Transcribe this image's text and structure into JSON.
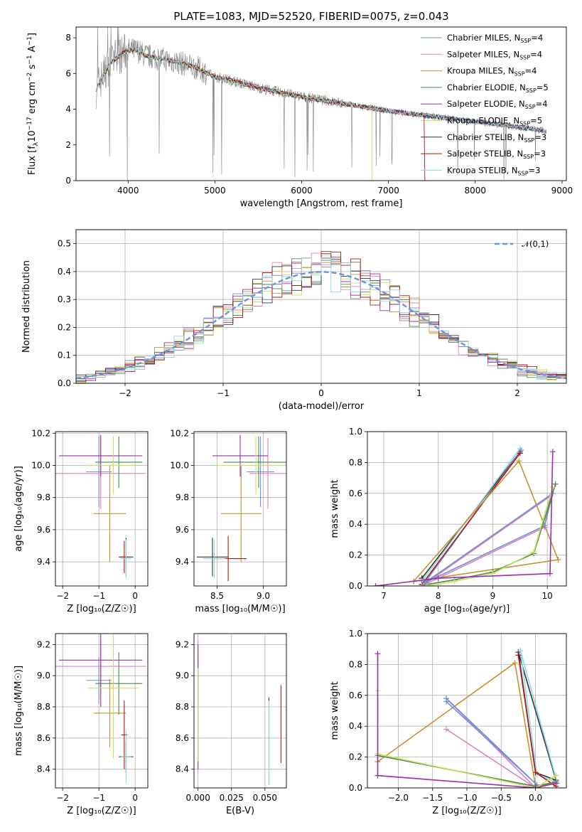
{
  "figure": {
    "title": "PLATE=1083, MJD=52520, FIBERID=0075, z=0.043"
  },
  "series": [
    {
      "name": "Chabrier MILES",
      "nssp": "4",
      "color": "#6f8fd6"
    },
    {
      "name": "Salpeter MILES",
      "nssp": "4",
      "color": "#e07fc0"
    },
    {
      "name": "Kroupa MILES",
      "nssp": "4",
      "color": "#c89030"
    },
    {
      "name": "Chabrier ELODIE",
      "nssp": "5",
      "color": "#4a8a4a"
    },
    {
      "name": "Salpeter ELODIE",
      "nssp": "4",
      "color": "#9a2fa8"
    },
    {
      "name": "Kroupa ELODIE",
      "nssp": "5",
      "color": "#c8e060"
    },
    {
      "name": "Chabrier STELIB",
      "nssp": "3",
      "color": "#333333"
    },
    {
      "name": "Salpeter STELIB",
      "nssp": "3",
      "color": "#b01818"
    },
    {
      "name": "Kroupa STELIB",
      "nssp": "3",
      "color": "#8fd8e0"
    }
  ],
  "chart_data": [
    {
      "id": "spectrum",
      "type": "line",
      "xlabel": "wavelength [Angstrom, rest frame]",
      "ylabel_main": "Flux [f",
      "ylabel_sub": "λ",
      "ylabel_mid": "10",
      "ylabel_sup1": "−17",
      "ylabel_mid2": " erg cm",
      "ylabel_sup2": "−2",
      "ylabel_mid3": " s",
      "ylabel_sup3": "−1",
      "ylabel_end": " A",
      "ylabel_sup4": "−1",
      "ylabel_close": "]",
      "xlim": [
        3400,
        9050
      ],
      "ylim": [
        0,
        8.6
      ],
      "xticks": [
        4000,
        5000,
        6000,
        7000,
        8000,
        9000
      ],
      "yticks": [
        0,
        2,
        4,
        6,
        8
      ],
      "data_color": "#808080",
      "continuum_x": [
        3620,
        3700,
        3800,
        3900,
        4000,
        4100,
        4200,
        4400,
        4600,
        4800,
        5000,
        5200,
        5500,
        6000,
        6500,
        7000,
        7500,
        8000,
        8500,
        8800
      ],
      "continuum_y": [
        5.0,
        5.8,
        6.6,
        7.0,
        7.3,
        7.3,
        7.0,
        6.8,
        6.6,
        6.3,
        5.8,
        5.6,
        5.2,
        4.7,
        4.3,
        3.9,
        3.6,
        3.3,
        3.0,
        2.8
      ],
      "model_end_x": {
        "Kroupa ELODIE": 6810,
        "Salpeter STELIB": 7420,
        "Kroupa STELIB": 8800
      }
    },
    {
      "id": "residuals",
      "type": "histogram",
      "xlabel": "(data-model)/error",
      "ylabel": "Normed distribution",
      "xlim": [
        -2.5,
        2.5
      ],
      "ylim": [
        0,
        0.55
      ],
      "xticks": [
        -2,
        -1,
        0,
        1,
        2
      ],
      "xtick_labels": [
        "−2",
        "−1",
        "0",
        "1",
        "2"
      ],
      "yticks": [
        0.0,
        0.1,
        0.2,
        0.3,
        0.4,
        0.5
      ],
      "ytick_labels": [
        "0.0",
        "0.1",
        "0.2",
        "0.3",
        "0.4",
        "0.5"
      ],
      "bin_width": 0.1,
      "grid": true,
      "reference_label": "𝒩(0,1)",
      "reference_color": "#6d93d8",
      "legend": "top-right"
    },
    {
      "id": "age_vs_Z",
      "type": "errorbar",
      "xlabel": "Z [log₁₀(Z/Z☉)]",
      "ylabel": "age  [log₁₀(age/yr)]",
      "xlim": [
        -2.2,
        0.35
      ],
      "ylim": [
        9.25,
        10.21
      ],
      "xticks": [
        -2,
        -1,
        0
      ],
      "xtick_labels": [
        "−2",
        "−1",
        "0"
      ],
      "yticks": [
        9.4,
        9.6,
        9.8,
        10.0,
        10.2
      ],
      "ytick_labels": [
        "9.4",
        "9.6",
        "9.8",
        "10.0",
        "10.2"
      ],
      "points": [
        {
          "s": 0,
          "x": -1.0,
          "xerr": 0.35,
          "y": 9.96,
          "yerr": 0.22
        },
        {
          "s": 1,
          "x": -0.95,
          "xerr": 1.25,
          "y": 9.95,
          "yerr": 0.22
        },
        {
          "s": 2,
          "x": -0.7,
          "xerr": 0.45,
          "y": 9.7,
          "yerr": 0.3
        },
        {
          "s": 3,
          "x": -0.45,
          "xerr": 0.65,
          "y": 10.02,
          "yerr": 0.16
        },
        {
          "s": 4,
          "x": -0.95,
          "xerr": 1.15,
          "y": 10.06,
          "yerr": 0.13
        },
        {
          "s": 5,
          "x": -0.6,
          "xerr": 0.7,
          "y": 10.0,
          "yerr": 0.18
        },
        {
          "s": 6,
          "x": -0.25,
          "xerr": 0.2,
          "y": 9.43,
          "yerr": 0.12
        },
        {
          "s": 7,
          "x": -0.3,
          "xerr": 0.1,
          "y": 9.43,
          "yerr": 0.1
        },
        {
          "s": 8,
          "x": -0.25,
          "xerr": 0.15,
          "y": 9.42,
          "yerr": 0.12
        }
      ]
    },
    {
      "id": "age_vs_mass",
      "type": "errorbar",
      "xlabel": "mass [log₁₀(M/M☉)]",
      "ylabel": "",
      "xlim": [
        8.25,
        9.25
      ],
      "ylim": [
        9.25,
        10.21
      ],
      "xticks": [
        8.5,
        9.0
      ],
      "xtick_labels": [
        "8.5",
        "9.0"
      ],
      "yticks": [
        9.4,
        9.6,
        9.8,
        10.0,
        10.2
      ],
      "ytick_labels": [
        "9.4",
        "9.6",
        "9.8",
        "10.0",
        "10.2"
      ],
      "points": [
        {
          "s": 0,
          "x": 8.97,
          "xerr": 0.15,
          "y": 9.96,
          "yerr": 0.22
        },
        {
          "s": 1,
          "x": 9.05,
          "xerr": 0.2,
          "y": 9.95,
          "yerr": 0.22
        },
        {
          "s": 2,
          "x": 8.76,
          "xerr": 0.22,
          "y": 9.7,
          "yerr": 0.3
        },
        {
          "s": 3,
          "x": 8.95,
          "xerr": 0.38,
          "y": 10.02,
          "yerr": 0.16
        },
        {
          "s": 4,
          "x": 8.75,
          "xerr": 0.3,
          "y": 10.06,
          "yerr": 0.13
        },
        {
          "s": 5,
          "x": 8.92,
          "xerr": 0.45,
          "y": 10.0,
          "yerr": 0.18
        },
        {
          "s": 6,
          "x": 8.45,
          "xerr": 0.17,
          "y": 9.43,
          "yerr": 0.12
        },
        {
          "s": 7,
          "x": 8.62,
          "xerr": 0.2,
          "y": 9.42,
          "yerr": 0.14
        },
        {
          "s": 8,
          "x": 8.47,
          "xerr": 0.12,
          "y": 9.42,
          "yerr": 0.12
        }
      ]
    },
    {
      "id": "mass_weight_vs_age",
      "type": "line",
      "xlabel": "age  [log₁₀(age/yr)]",
      "ylabel": "mass weight",
      "xlim": [
        6.7,
        10.35
      ],
      "ylim": [
        0,
        1.0
      ],
      "xticks": [
        7,
        8,
        9,
        10
      ],
      "xtick_labels": [
        "7",
        "8",
        "9",
        "10"
      ],
      "yticks": [
        0.0,
        0.2,
        0.4,
        0.6,
        0.8,
        1.0
      ],
      "ytick_labels": [
        "0.0",
        "0.2",
        "0.4",
        "0.6",
        "0.8",
        "1.0"
      ],
      "lines": [
        {
          "s": 6,
          "x": [
            7.7,
            9.5,
            7.7
          ],
          "y": [
            0.05,
            0.87,
            0.05
          ]
        },
        {
          "s": 8,
          "x": [
            7.7,
            9.5,
            7.7
          ],
          "y": [
            0.03,
            0.89,
            0.03
          ]
        },
        {
          "s": 0,
          "x": [
            7.75,
            9.52,
            7.75
          ],
          "y": [
            0.02,
            0.88,
            0.02
          ]
        },
        {
          "s": 7,
          "x": [
            7.7,
            9.5,
            7.7
          ],
          "y": [
            0.01,
            0.86,
            0.01
          ]
        },
        {
          "s": 2,
          "x": [
            7.55,
            9.48,
            10.2,
            7.55
          ],
          "y": [
            0.03,
            0.81,
            0.17,
            0.03
          ]
        },
        {
          "s": 1,
          "x": [
            7.7,
            9.95,
            10.05,
            7.7
          ],
          "y": [
            0.0,
            0.38,
            0.58,
            0.0
          ]
        },
        {
          "s": 0,
          "x": [
            7.75,
            9.95,
            10.1,
            7.75
          ],
          "y": [
            0.02,
            0.39,
            0.6,
            0.02
          ]
        },
        {
          "s": 3,
          "x": [
            7.8,
            8.3,
            9.0,
            9.75,
            10.15
          ],
          "y": [
            0.01,
            0.04,
            0.09,
            0.21,
            0.66
          ]
        },
        {
          "s": 5,
          "x": [
            7.8,
            8.3,
            9.0,
            9.75,
            10.1
          ],
          "y": [
            0.0,
            0.03,
            0.08,
            0.22,
            0.64
          ]
        },
        {
          "s": 4,
          "x": [
            6.85,
            8.0,
            10.05,
            10.1
          ],
          "y": [
            0.0,
            0.05,
            0.08,
            0.87
          ]
        }
      ]
    },
    {
      "id": "mass_vs_Z",
      "type": "errorbar",
      "xlabel": "Z [log₁₀(Z/Z☉)]",
      "ylabel": "mass [log₁₀(M/M☉)]",
      "xlim": [
        -2.2,
        0.35
      ],
      "ylim": [
        8.28,
        9.27
      ],
      "xticks": [
        -2,
        -1,
        0
      ],
      "xtick_labels": [
        "−2",
        "−1",
        "0"
      ],
      "yticks": [
        8.4,
        8.6,
        8.8,
        9.0,
        9.2
      ],
      "ytick_labels": [
        "8.4",
        "8.6",
        "8.8",
        "9.0",
        "9.2"
      ],
      "points": [
        {
          "s": 0,
          "x": -1.0,
          "xerr": 0.35,
          "y": 8.97,
          "yerr": 0.15
        },
        {
          "s": 1,
          "x": -0.95,
          "xerr": 1.25,
          "y": 9.06,
          "yerr": 0.17
        },
        {
          "s": 2,
          "x": -0.7,
          "xerr": 0.45,
          "y": 8.76,
          "yerr": 0.22
        },
        {
          "s": 3,
          "x": -0.45,
          "xerr": 0.65,
          "y": 8.95,
          "yerr": 0.2
        },
        {
          "s": 4,
          "x": -0.95,
          "xerr": 1.15,
          "y": 9.1,
          "yerr": 0.3
        },
        {
          "s": 5,
          "x": -0.6,
          "xerr": 0.7,
          "y": 8.92,
          "yerr": 0.45
        },
        {
          "s": 6,
          "x": -0.25,
          "xerr": 0.2,
          "y": 8.48,
          "yerr": 0.1
        },
        {
          "s": 7,
          "x": -0.3,
          "xerr": 0.08,
          "y": 8.62,
          "yerr": 0.22
        },
        {
          "s": 8,
          "x": -0.25,
          "xerr": 0.15,
          "y": 8.48,
          "yerr": 0.17
        }
      ]
    },
    {
      "id": "mass_vs_ebv",
      "type": "errorbar",
      "xlabel": "E(B-V)",
      "ylabel": "",
      "xlim": [
        -0.003,
        0.066
      ],
      "ylim": [
        8.28,
        9.27
      ],
      "xticks": [
        0.0,
        0.025,
        0.05
      ],
      "xtick_labels": [
        "0.000",
        "0.025",
        "0.050"
      ],
      "yticks": [
        8.4,
        8.6,
        8.8,
        9.0,
        9.2
      ],
      "ytick_labels": [
        "8.4",
        "8.6",
        "8.8",
        "9.0",
        "9.2"
      ],
      "points": [
        {
          "s": 0,
          "x": 0.0,
          "xerr": 0,
          "y": 8.97,
          "yerr": 0.15
        },
        {
          "s": 1,
          "x": 0.0,
          "xerr": 0,
          "y": 9.06,
          "yerr": 0.17
        },
        {
          "s": 4,
          "x": 0.0,
          "xerr": 0,
          "y": 8.8,
          "yerr": 0.4
        },
        {
          "s": 5,
          "x": 0.0,
          "xerr": 0,
          "y": 8.75,
          "yerr": 0.3
        },
        {
          "s": 6,
          "x": 0.053,
          "xerr": 0,
          "y": 8.58,
          "yerr": 0.28
        },
        {
          "s": 8,
          "x": 0.053,
          "xerr": 0,
          "y": 8.57,
          "yerr": 0.27
        },
        {
          "s": 7,
          "x": 0.062,
          "xerr": 0,
          "y": 8.69,
          "yerr": 0.25
        }
      ]
    },
    {
      "id": "mass_weight_vs_Z",
      "type": "line",
      "xlabel": "Z [log₁₀(Z/Z☉)]",
      "ylabel": "mass weight",
      "xlim": [
        -2.45,
        0.45
      ],
      "ylim": [
        0,
        1.0
      ],
      "xticks": [
        -2.0,
        -1.5,
        -1.0,
        -0.5,
        0.0
      ],
      "xtick_labels": [
        "−2.0",
        "−1.5",
        "−1.0",
        "−0.5",
        "0.0"
      ],
      "yticks": [
        0.0,
        0.2,
        0.4,
        0.6,
        0.8,
        1.0
      ],
      "ytick_labels": [
        "0.0",
        "0.2",
        "0.4",
        "0.6",
        "0.8",
        "1.0"
      ],
      "lines": [
        {
          "s": 6,
          "x": [
            -0.25,
            0.0,
            0.3,
            -0.25
          ],
          "y": [
            0.88,
            0.1,
            0.05,
            0.88
          ]
        },
        {
          "s": 8,
          "x": [
            -0.22,
            0.02,
            0.32,
            -0.22
          ],
          "y": [
            0.89,
            0.09,
            0.03,
            0.89
          ]
        },
        {
          "s": 7,
          "x": [
            -0.25,
            0.0,
            0.3
          ],
          "y": [
            0.86,
            0.1,
            0.01
          ]
        },
        {
          "s": 2,
          "x": [
            -2.3,
            -0.3,
            0.0,
            0.3
          ],
          "y": [
            0.17,
            0.81,
            0.01,
            0.03
          ]
        },
        {
          "s": 1,
          "x": [
            -1.3,
            0.0,
            -1.3
          ],
          "y": [
            0.58,
            0.0,
            0.38
          ]
        },
        {
          "s": 0,
          "x": [
            -1.3,
            0.02,
            -1.3
          ],
          "y": [
            0.58,
            0.02,
            0.56
          ]
        },
        {
          "s": 3,
          "x": [
            -2.3,
            0.0,
            0.3
          ],
          "y": [
            0.21,
            0.01,
            0.04
          ]
        },
        {
          "s": 5,
          "x": [
            -2.3,
            -2.3,
            0.0,
            0.3
          ],
          "y": [
            0.63,
            0.22,
            0.0,
            0.08
          ]
        },
        {
          "s": 4,
          "x": [
            -2.3,
            -2.3,
            0.0,
            0.3
          ],
          "y": [
            0.87,
            0.08,
            0.0,
            0.03
          ]
        }
      ]
    }
  ]
}
